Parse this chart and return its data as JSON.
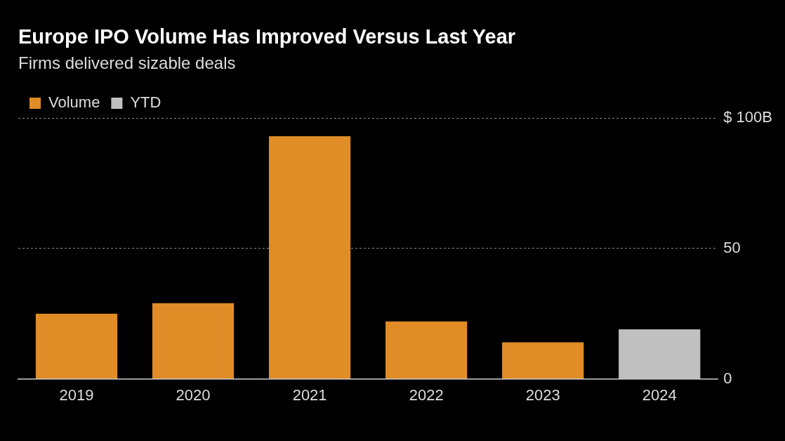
{
  "chart_data": {
    "type": "bar",
    "title": "Europe IPO Volume Has Improved Versus Last Year",
    "subtitle": "Firms delivered sizable deals",
    "categories": [
      "2019",
      "2020",
      "2021",
      "2022",
      "2023",
      "2024"
    ],
    "series": [
      {
        "name": "Volume",
        "color": "#e08c27",
        "values": [
          25,
          29,
          93,
          22,
          14,
          null
        ]
      },
      {
        "name": "YTD",
        "color": "#c0c0c0",
        "values": [
          null,
          null,
          null,
          null,
          null,
          19
        ]
      }
    ],
    "ylim": [
      0,
      100
    ],
    "yticks": [
      {
        "value": 0,
        "label": "0"
      },
      {
        "value": 50,
        "label": "50"
      },
      {
        "value": 100,
        "label": "$ 100B"
      }
    ],
    "grid": "y",
    "legend": "top left"
  }
}
